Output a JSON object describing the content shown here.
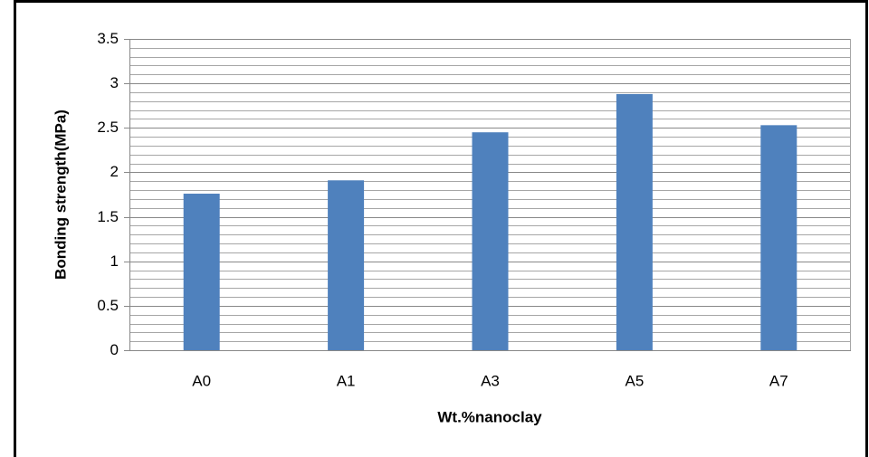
{
  "chart_data": {
    "type": "bar",
    "categories": [
      "A0",
      "A1",
      "A3",
      "A5",
      "A7"
    ],
    "values": [
      1.76,
      1.91,
      2.45,
      2.88,
      2.53
    ],
    "color": "#4f81bd",
    "ylim": [
      0,
      3.5
    ],
    "yticks": [
      0,
      0.5,
      1,
      1.5,
      2,
      2.5,
      3,
      3.5
    ],
    "yminorticks": [
      0.1,
      0.2,
      0.3,
      0.4,
      0.6,
      0.7,
      0.8,
      0.9,
      1.1,
      1.2,
      1.3,
      1.4,
      1.6,
      1.7,
      1.8,
      1.9,
      2.1,
      2.2,
      2.3,
      2.4,
      2.6,
      2.7,
      2.8,
      2.9,
      3.1,
      3.2,
      3.3,
      3.4
    ],
    "grid": true,
    "xlabel": "Wt.%nanoclay",
    "ylabel": "Bonding strength(MPa)"
  }
}
